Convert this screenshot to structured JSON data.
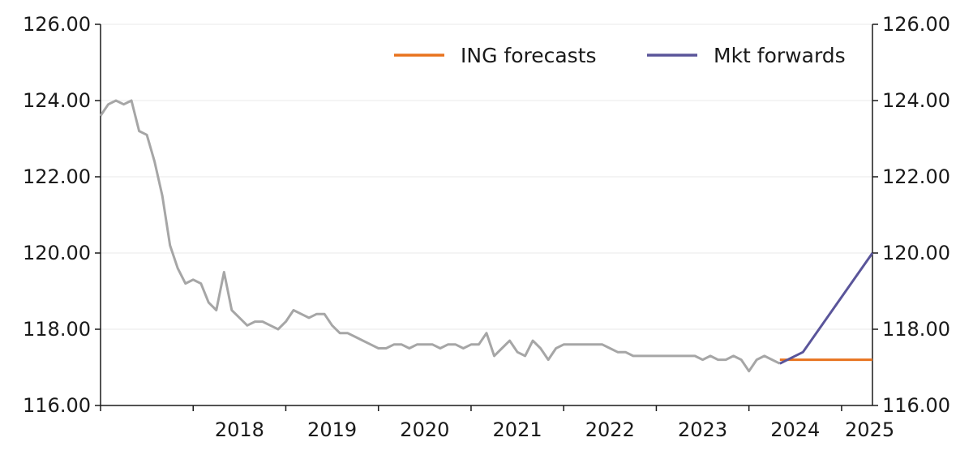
{
  "chart_data": {
    "type": "line",
    "title": "",
    "xlabel": "",
    "ylabel": "",
    "ylim": [
      116,
      126
    ],
    "xlim": [
      "2017-01",
      "2025-05"
    ],
    "y_ticks": [
      "116.00",
      "118.00",
      "120.00",
      "122.00",
      "124.00",
      "126.00"
    ],
    "y_tick_values": [
      116,
      118,
      120,
      122,
      124,
      126
    ],
    "x_ticks": [
      "2018",
      "2019",
      "2020",
      "2021",
      "2022",
      "2023",
      "2024",
      "2025"
    ],
    "grid": "horizontal",
    "dual_y_axis": true,
    "legend_position": "top-right",
    "colors": {
      "history": "#a6a6a6",
      "ing": "#e8731f",
      "mkt": "#5a559a",
      "grid": "#eaeaea",
      "axis": "#1a1a1a"
    },
    "history_series": {
      "color": "#a6a6a6",
      "x": [
        "2017-01",
        "2017-02",
        "2017-03",
        "2017-04",
        "2017-05",
        "2017-06",
        "2017-07",
        "2017-08",
        "2017-09",
        "2017-10",
        "2017-11",
        "2017-12",
        "2018-01",
        "2018-02",
        "2018-03",
        "2018-04",
        "2018-05",
        "2018-06",
        "2018-07",
        "2018-08",
        "2018-09",
        "2018-10",
        "2018-11",
        "2018-12",
        "2019-01",
        "2019-02",
        "2019-03",
        "2019-04",
        "2019-05",
        "2019-06",
        "2019-07",
        "2019-08",
        "2019-09",
        "2019-10",
        "2019-11",
        "2019-12",
        "2020-01",
        "2020-02",
        "2020-03",
        "2020-04",
        "2020-05",
        "2020-06",
        "2020-07",
        "2020-08",
        "2020-09",
        "2020-10",
        "2020-11",
        "2020-12",
        "2021-01",
        "2021-02",
        "2021-03",
        "2021-04",
        "2021-05",
        "2021-06",
        "2021-07",
        "2021-08",
        "2021-09",
        "2021-10",
        "2021-11",
        "2021-12",
        "2022-01",
        "2022-02",
        "2022-03",
        "2022-04",
        "2022-05",
        "2022-06",
        "2022-07",
        "2022-08",
        "2022-09",
        "2022-10",
        "2022-11",
        "2022-12",
        "2023-01",
        "2023-02",
        "2023-03",
        "2023-04",
        "2023-05",
        "2023-06",
        "2023-07",
        "2023-08",
        "2023-09",
        "2023-10",
        "2023-11",
        "2023-12",
        "2024-01",
        "2024-02",
        "2024-03",
        "2024-04",
        "2024-05"
      ],
      "values": [
        123.6,
        123.9,
        124.0,
        123.9,
        124.0,
        123.2,
        123.1,
        122.4,
        121.5,
        120.2,
        119.6,
        119.2,
        119.3,
        119.2,
        118.7,
        118.5,
        119.5,
        118.5,
        118.3,
        118.1,
        118.2,
        118.2,
        118.1,
        118.0,
        118.2,
        118.5,
        118.4,
        118.3,
        118.4,
        118.4,
        118.1,
        117.9,
        117.9,
        117.8,
        117.7,
        117.6,
        117.5,
        117.5,
        117.6,
        117.6,
        117.5,
        117.6,
        117.6,
        117.6,
        117.5,
        117.6,
        117.6,
        117.5,
        117.6,
        117.6,
        117.9,
        117.3,
        117.5,
        117.7,
        117.4,
        117.3,
        117.7,
        117.5,
        117.2,
        117.5,
        117.6,
        117.6,
        117.6,
        117.6,
        117.6,
        117.6,
        117.5,
        117.4,
        117.4,
        117.3,
        117.3,
        117.3,
        117.3,
        117.3,
        117.3,
        117.3,
        117.3,
        117.3,
        117.2,
        117.3,
        117.2,
        117.2,
        117.3,
        117.2,
        116.9,
        117.2,
        117.3,
        117.2,
        117.1
      ]
    },
    "series": [
      {
        "name": "ING forecasts",
        "color": "#e8731f",
        "x": [
          "2024-05",
          "2024-08",
          "2025-01",
          "2025-05"
        ],
        "values": [
          117.2,
          117.2,
          117.2,
          117.2
        ]
      },
      {
        "name": "Mkt forwards",
        "color": "#5a559a",
        "x": [
          "2024-05",
          "2024-08",
          "2025-05"
        ],
        "values": [
          117.1,
          117.4,
          120.0
        ]
      }
    ]
  }
}
